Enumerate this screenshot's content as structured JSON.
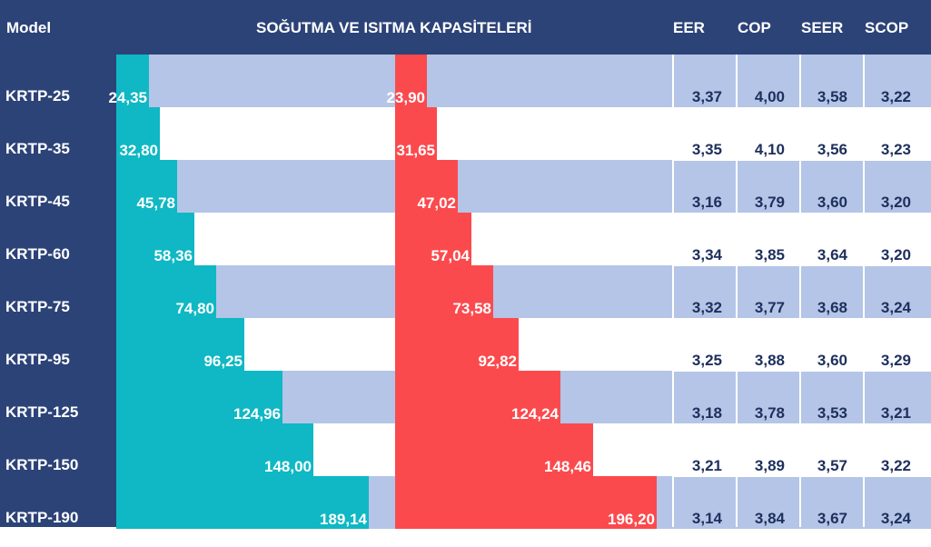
{
  "header": {
    "model": "Model",
    "title": "SOĞUTMA VE ISITMA KAPASİTELERİ",
    "eer": "EER",
    "cop": "COP",
    "seer": "SEER",
    "scop": "SCOP"
  },
  "chart_data": {
    "type": "bar",
    "title": "SOĞUTMA VE ISITMA KAPASİTELERİ",
    "categories": [
      "KRTP-25",
      "KRTP-35",
      "KRTP-45",
      "KRTP-60",
      "KRTP-75",
      "KRTP-95",
      "KRTP-125",
      "KRTP-150",
      "KRTP-190"
    ],
    "series": [
      {
        "name": "cooling",
        "color": "#0fb8c4",
        "values": [
          24.35,
          32.8,
          45.78,
          58.36,
          74.8,
          96.25,
          124.96,
          148.0,
          189.14
        ],
        "labels": [
          "24,35",
          "32,80",
          "45,78",
          "58,36",
          "74,80",
          "96,25",
          "124,96",
          "148,00",
          "189,14"
        ]
      },
      {
        "name": "heating",
        "color": "#fb4a4d",
        "values": [
          23.9,
          31.65,
          47.02,
          57.04,
          73.58,
          92.82,
          124.24,
          148.46,
          196.2
        ],
        "labels": [
          "23,90",
          "31,65",
          "47,02",
          "57,04",
          "73,58",
          "92,82",
          "124,24",
          "148,46",
          "196,20"
        ]
      }
    ],
    "xlim": [
      0,
      196.2
    ]
  },
  "metrics": [
    {
      "eer": "3,37",
      "cop": "4,00",
      "seer": "3,58",
      "scop": "3,22"
    },
    {
      "eer": "3,35",
      "cop": "4,10",
      "seer": "3,56",
      "scop": "3,23"
    },
    {
      "eer": "3,16",
      "cop": "3,79",
      "seer": "3,60",
      "scop": "3,20"
    },
    {
      "eer": "3,34",
      "cop": "3,85",
      "seer": "3,64",
      "scop": "3,20"
    },
    {
      "eer": "3,32",
      "cop": "3,77",
      "seer": "3,68",
      "scop": "3,24"
    },
    {
      "eer": "3,25",
      "cop": "3,88",
      "seer": "3,60",
      "scop": "3,29"
    },
    {
      "eer": "3,18",
      "cop": "3,78",
      "seer": "3,53",
      "scop": "3,21"
    },
    {
      "eer": "3,21",
      "cop": "3,89",
      "seer": "3,57",
      "scop": "3,22"
    },
    {
      "eer": "3,14",
      "cop": "3,84",
      "seer": "3,67",
      "scop": "3,24"
    }
  ],
  "colors": {
    "header_bg": "#2c4378",
    "band": "#b4c5e7",
    "cooling": "#0fb8c4",
    "heating": "#fb4a4d",
    "metric_text": "#1d2f5c"
  }
}
